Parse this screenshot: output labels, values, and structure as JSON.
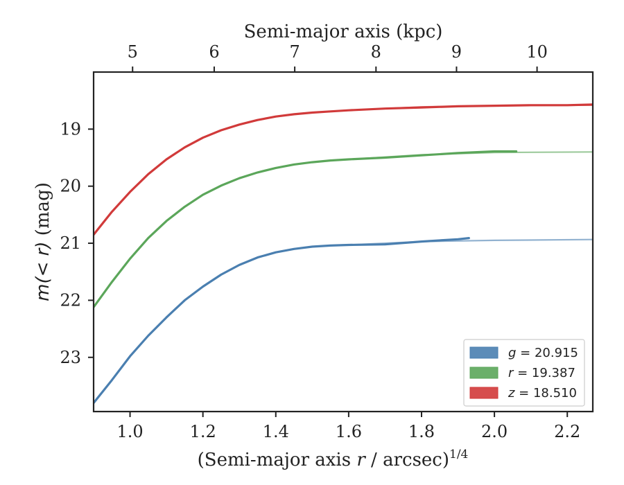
{
  "chart_data": {
    "type": "line",
    "xlabel_main": "(Semi-major axis ",
    "xlabel_var": "r",
    "xlabel_tail": " / arcsec)",
    "xlabel_sup": "1/4",
    "ylabel_main": "m(< r)",
    "ylabel_unit": " (mag)",
    "top_xlabel": "Semi-major axis (kpc)",
    "xlim": [
      0.9,
      2.27
    ],
    "ylim": [
      23.95,
      18.0
    ],
    "y_inverted": true,
    "x_ticks": [
      "1.0",
      "1.2",
      "1.4",
      "1.6",
      "1.8",
      "2.0",
      "2.2"
    ],
    "x_tick_values": [
      1.0,
      1.2,
      1.4,
      1.6,
      1.8,
      2.0,
      2.2
    ],
    "y_ticks": [
      "19",
      "20",
      "21",
      "22",
      "23"
    ],
    "y_tick_values": [
      19,
      20,
      21,
      22,
      23
    ],
    "top_ticks": [
      "5",
      "6",
      "7",
      "8",
      "9",
      "10"
    ],
    "top_tick_positions_x": [
      1.007,
      1.231,
      1.452,
      1.675,
      1.896,
      2.117
    ],
    "legend_position": "lower-right",
    "grid": false,
    "series": [
      {
        "name_var": "g",
        "name_value": " = 20.915",
        "color": "#4a7fb0",
        "x": [
          0.9,
          0.95,
          1.0,
          1.05,
          1.1,
          1.15,
          1.2,
          1.25,
          1.3,
          1.35,
          1.4,
          1.45,
          1.5,
          1.55,
          1.6,
          1.7,
          1.8,
          1.9,
          1.93
        ],
        "y": [
          23.8,
          23.4,
          22.98,
          22.62,
          22.3,
          22.0,
          21.76,
          21.55,
          21.38,
          21.25,
          21.16,
          21.1,
          21.06,
          21.04,
          21.03,
          21.02,
          20.97,
          20.93,
          20.91
        ],
        "model_x": [
          1.6,
          1.8,
          2.0,
          2.27
        ],
        "model_y": [
          21.03,
          20.97,
          20.95,
          20.935
        ]
      },
      {
        "name_var": "r",
        "name_value": " = 19.387",
        "color": "#5ba65a",
        "x": [
          0.9,
          0.95,
          1.0,
          1.05,
          1.1,
          1.15,
          1.2,
          1.25,
          1.3,
          1.35,
          1.4,
          1.45,
          1.5,
          1.55,
          1.6,
          1.7,
          1.8,
          1.9,
          2.0,
          2.06
        ],
        "y": [
          22.12,
          21.68,
          21.27,
          20.91,
          20.61,
          20.36,
          20.15,
          19.99,
          19.86,
          19.76,
          19.68,
          19.62,
          19.58,
          19.55,
          19.53,
          19.5,
          19.46,
          19.42,
          19.39,
          19.39
        ],
        "model_x": [
          1.6,
          1.8,
          2.0,
          2.27
        ],
        "model_y": [
          19.53,
          19.45,
          19.41,
          19.4
        ]
      },
      {
        "name_var": "z",
        "name_value": " = 18.510",
        "color": "#d13a3a",
        "x": [
          0.9,
          0.95,
          1.0,
          1.05,
          1.1,
          1.15,
          1.2,
          1.25,
          1.3,
          1.35,
          1.4,
          1.45,
          1.5,
          1.55,
          1.6,
          1.7,
          1.8,
          1.9,
          2.0,
          2.1,
          2.2,
          2.27
        ],
        "y": [
          20.85,
          20.45,
          20.1,
          19.79,
          19.53,
          19.32,
          19.15,
          19.02,
          18.92,
          18.84,
          18.78,
          18.74,
          18.71,
          18.69,
          18.67,
          18.64,
          18.62,
          18.6,
          18.59,
          18.58,
          18.58,
          18.57
        ],
        "model_x": [
          1.6,
          1.8,
          2.0,
          2.27
        ],
        "model_y": [
          18.67,
          18.61,
          18.59,
          18.58
        ]
      }
    ]
  }
}
